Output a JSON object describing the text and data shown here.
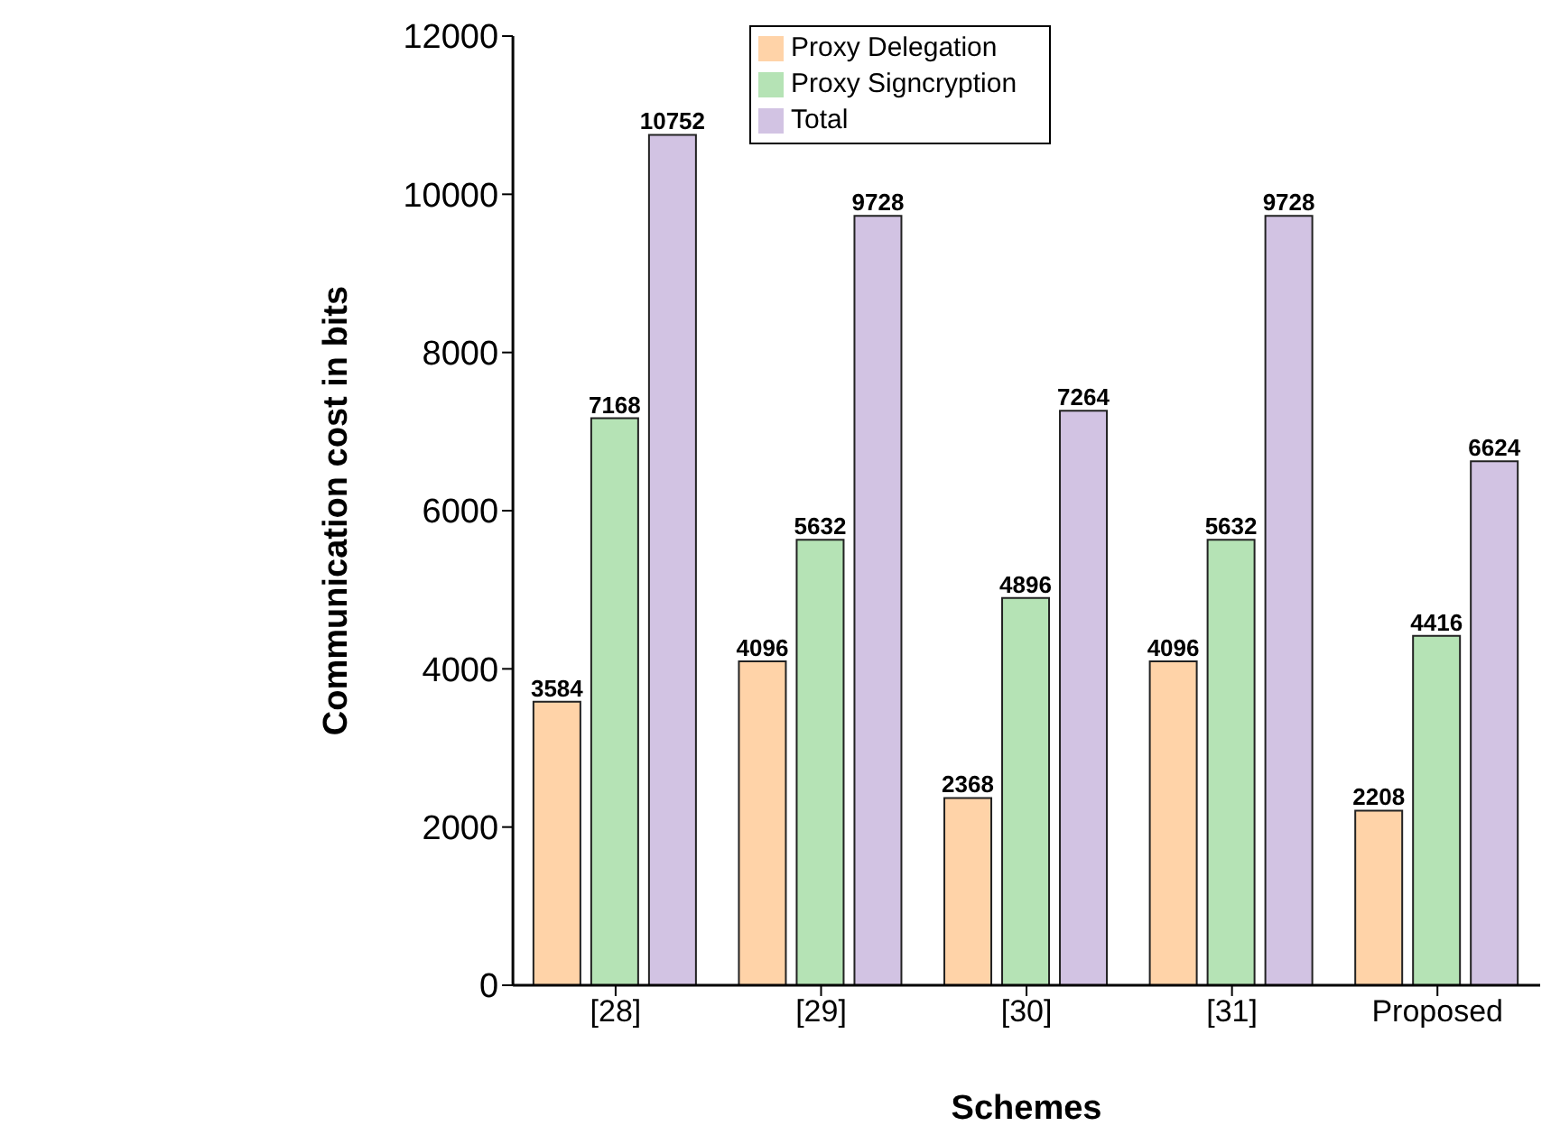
{
  "chart_data": {
    "type": "bar",
    "xlabel": "Schemes",
    "ylabel": "Communication cost in bits",
    "categories": [
      "[28]",
      "[29]",
      "[30]",
      "[31]",
      "Proposed"
    ],
    "series": [
      {
        "name": "Proxy Delegation",
        "color": "#ffd3a8",
        "values": [
          3584,
          4096,
          2368,
          4096,
          2208
        ]
      },
      {
        "name": "Proxy Signcryption",
        "color": "#b5e3b5",
        "values": [
          7168,
          5632,
          4896,
          5632,
          4416
        ]
      },
      {
        "name": "Total",
        "color": "#d2c3e3",
        "values": [
          10752,
          9728,
          7264,
          9728,
          6624
        ]
      }
    ],
    "ylim": [
      0,
      12000
    ],
    "yticks": [
      0,
      2000,
      4000,
      6000,
      8000,
      10000,
      12000
    ],
    "data_labels": true,
    "legend": "top",
    "grid": false
  }
}
